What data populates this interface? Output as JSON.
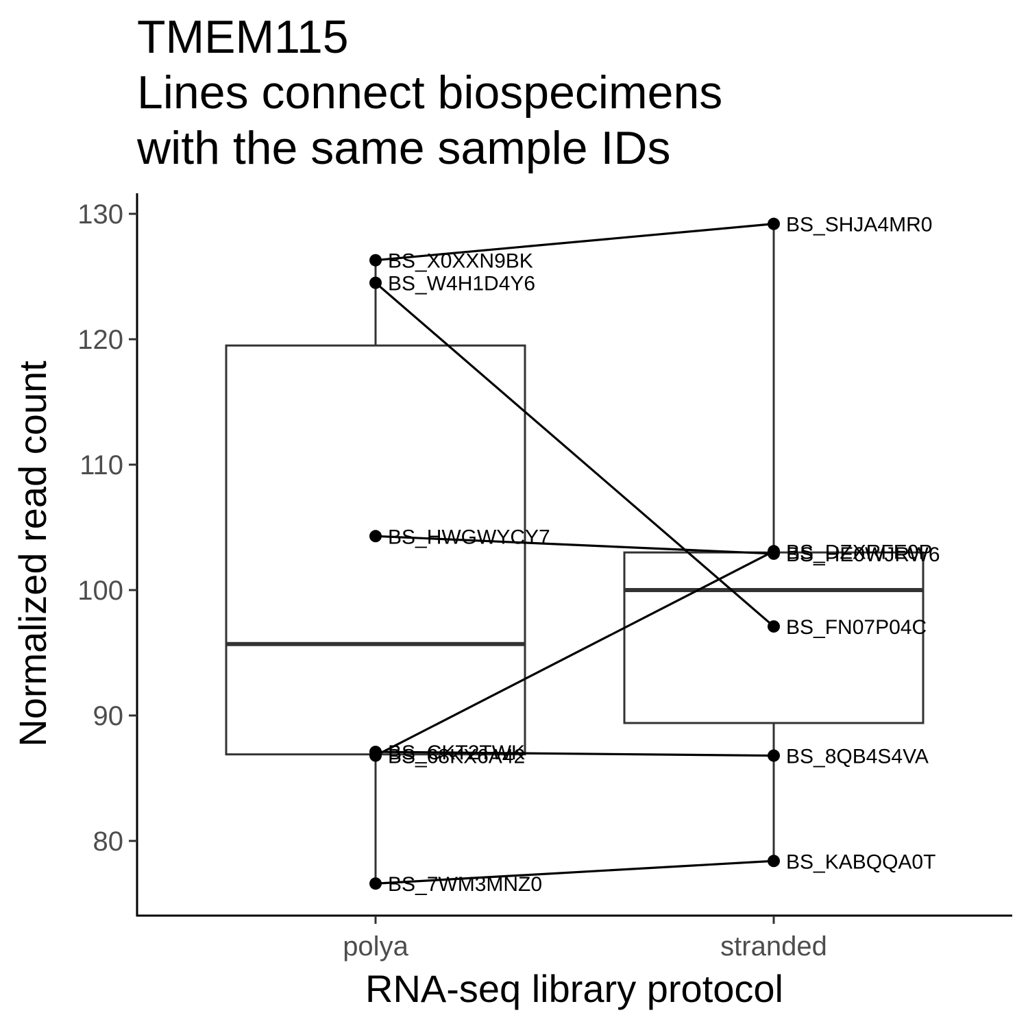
{
  "chart_data": {
    "type": "box-with-paired-points",
    "title": "TMEM115",
    "subtitle_lines": [
      "Lines connect biospecimens",
      "with the same sample IDs"
    ],
    "xlabel": "RNA-seq library protocol",
    "ylabel": "Normalized read count",
    "categories": [
      "polya",
      "stranded"
    ],
    "ylim": [
      74,
      132
    ],
    "yticks": [
      80,
      90,
      100,
      110,
      120,
      130
    ],
    "grid": false,
    "boxes": [
      {
        "category": "polya",
        "lower_whisker": 76.6,
        "q1": 86.9,
        "median": 95.7,
        "q3": 119.5,
        "upper_whisker": 126.3
      },
      {
        "category": "stranded",
        "lower_whisker": 78.4,
        "q1": 89.4,
        "median": 100.0,
        "q3": 103.0,
        "upper_whisker": 129.2
      }
    ],
    "points": [
      {
        "category": "polya",
        "label": "BS_X0XXN9BK",
        "value": 126.3
      },
      {
        "category": "polya",
        "label": "BS_W4H1D4Y6",
        "value": 124.5
      },
      {
        "category": "polya",
        "label": "BS_HWGWYCY7",
        "value": 104.3
      },
      {
        "category": "polya",
        "label": "BS_CKT2TWK",
        "value": 87.1
      },
      {
        "category": "polya",
        "label": "BS_68KX6A42",
        "value": 86.8
      },
      {
        "category": "polya",
        "label": "BS_7WM3MNZ0",
        "value": 76.6
      },
      {
        "category": "stranded",
        "label": "BS_SHJA4MR0",
        "value": 129.2
      },
      {
        "category": "stranded",
        "label": "BS_DZXRFE0P",
        "value": 103.1
      },
      {
        "category": "stranded",
        "label": "BS_HE0WJRW6",
        "value": 102.9
      },
      {
        "category": "stranded",
        "label": "BS_FN07P04C",
        "value": 97.1
      },
      {
        "category": "stranded",
        "label": "BS_8QB4S4VA",
        "value": 86.8
      },
      {
        "category": "stranded",
        "label": "BS_KABQQA0T",
        "value": 78.4
      }
    ],
    "pairs": [
      [
        "BS_X0XXN9BK",
        "BS_SHJA4MR0"
      ],
      [
        "BS_W4H1D4Y6",
        "BS_FN07P04C"
      ],
      [
        "BS_HWGWYCY7",
        "BS_HE0WJRW6"
      ],
      [
        "BS_68KX6A42",
        "BS_DZXRFE0P"
      ],
      [
        "BS_CKT2TWK",
        "BS_8QB4S4VA"
      ],
      [
        "BS_7WM3MNZ0",
        "BS_KABQQA0T"
      ]
    ]
  }
}
